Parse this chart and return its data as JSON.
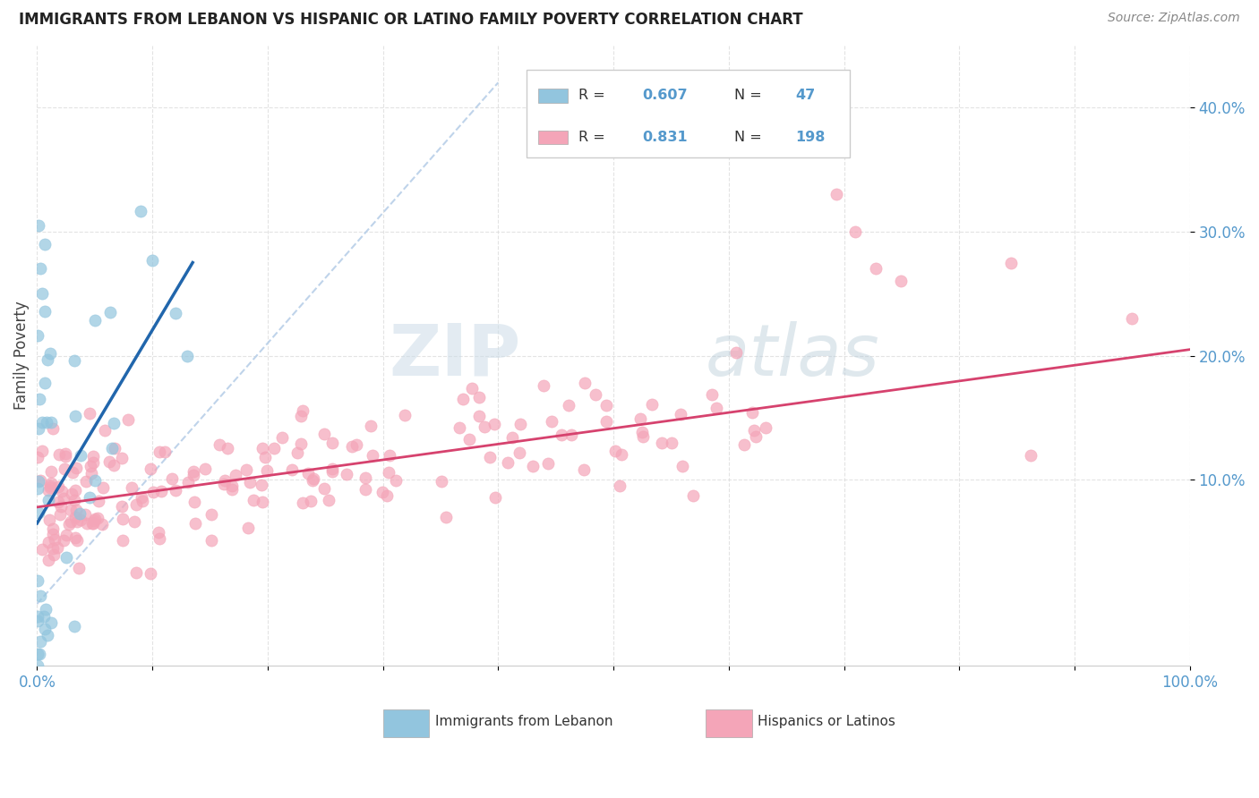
{
  "title": "IMMIGRANTS FROM LEBANON VS HISPANIC OR LATINO FAMILY POVERTY CORRELATION CHART",
  "source": "Source: ZipAtlas.com",
  "ylabel": "Family Poverty",
  "watermark_zip": "ZIP",
  "watermark_atlas": "atlas",
  "xlim": [
    0.0,
    1.0
  ],
  "ylim": [
    -0.05,
    0.45
  ],
  "blue_R": 0.607,
  "blue_N": 47,
  "pink_R": 0.831,
  "pink_N": 198,
  "blue_color": "#92c5de",
  "pink_color": "#f4a5b8",
  "blue_line_color": "#2166ac",
  "pink_line_color": "#d6426e",
  "ref_line_color": "#b8cfe8",
  "legend_blue_label": "Immigrants from Lebanon",
  "legend_pink_label": "Hispanics or Latinos",
  "title_fontsize": 12,
  "source_fontsize": 10,
  "tick_color": "#5599cc",
  "label_color": "#444444",
  "grid_color": "#dddddd",
  "watermark_color_zip": "#c5d8ea",
  "watermark_color_atlas": "#b8c8d8"
}
